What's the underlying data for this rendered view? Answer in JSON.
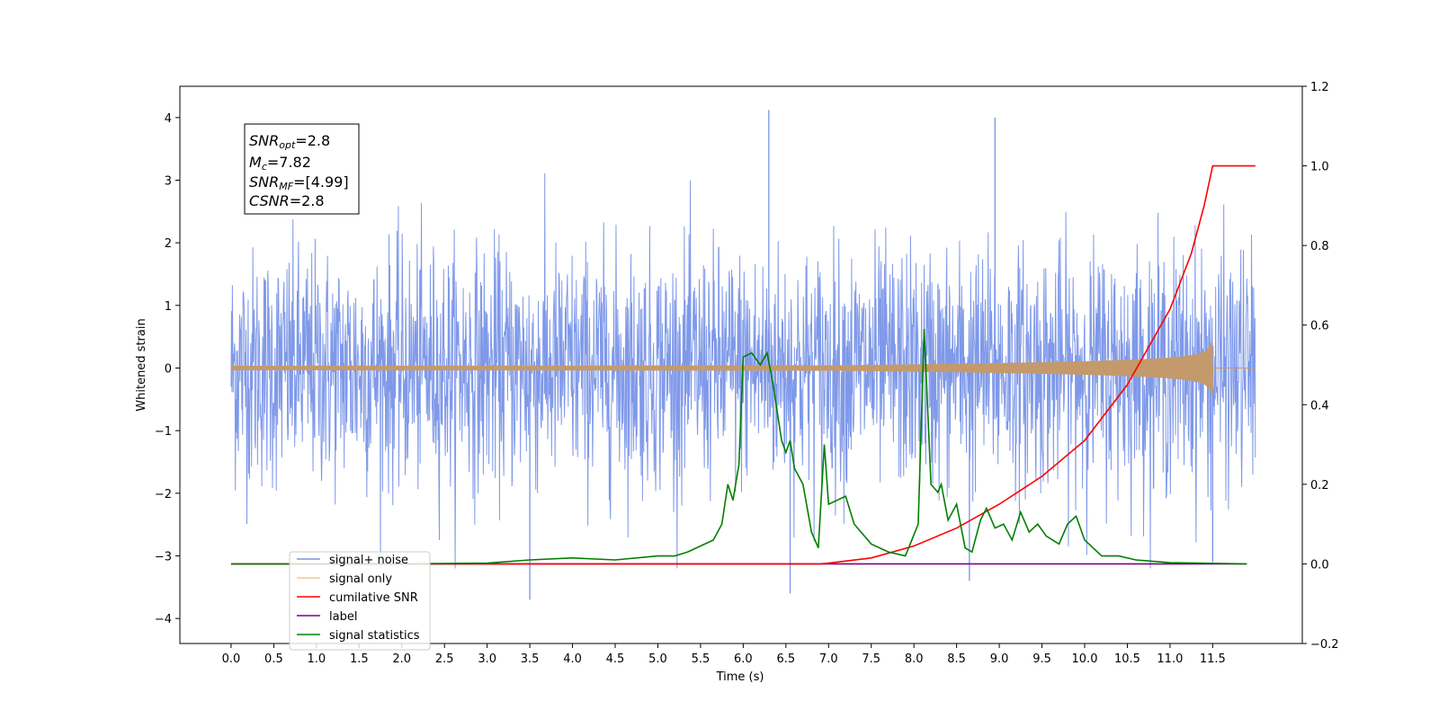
{
  "chart_data": {
    "type": "line",
    "xlabel": "Time (s)",
    "ylabel": "Whitened strain",
    "x_range": [
      -0.6,
      12.55
    ],
    "ylim_left": [
      -4.4,
      4.5
    ],
    "ylim_right": [
      -0.2,
      1.2
    ],
    "x_ticks": [
      "0.0",
      "0.5",
      "1.0",
      "1.5",
      "2.0",
      "2.5",
      "3.0",
      "3.5",
      "4.0",
      "4.5",
      "5.0",
      "5.5",
      "6.0",
      "6.5",
      "7.0",
      "7.5",
      "8.0",
      "8.5",
      "9.0",
      "9.5",
      "10.0",
      "10.5",
      "11.0",
      "11.5"
    ],
    "y_ticks_left": [
      "−4",
      "−3",
      "−2",
      "−1",
      "0",
      "1",
      "2",
      "3",
      "4"
    ],
    "y_ticks_right": [
      "−0.2",
      "0.0",
      "0.2",
      "0.4",
      "0.6",
      "0.8",
      "1.0",
      "1.2"
    ],
    "info_box": {
      "line1": "SNR",
      "line1_sub": "opt",
      "line1_val": "=2.8",
      "line2": "M",
      "line2_sub": "c",
      "line2_val": "=7.82",
      "line3": "SNR",
      "line3_sub": "MF",
      "line3_val": "=[4.99]",
      "line4": "CSNR",
      "line4_val": "=2.8"
    },
    "legend": {
      "location": "lower-left",
      "entries": [
        {
          "label": "signal+ noise",
          "color": "#7893e8"
        },
        {
          "label": "signal only",
          "color": "#f5c77e"
        },
        {
          "label": "cumilative SNR",
          "color": "#ff0000"
        },
        {
          "label": "label",
          "color": "#800080"
        },
        {
          "label": "signal statistics",
          "color": "#008000"
        }
      ]
    },
    "series": [
      {
        "name": "signal+ noise",
        "axis": "left",
        "color": "#7893e8",
        "x_start": 0.0,
        "x_end": 12.0,
        "noise_envelope": [
          -2.6,
          2.6
        ],
        "notable_peaks": [
          [
            6.3,
            4.12
          ],
          [
            8.95,
            4.0
          ],
          [
            11.5,
            -3.1
          ],
          [
            3.5,
            -3.7
          ],
          [
            6.55,
            -3.6
          ],
          [
            8.65,
            -3.4
          ]
        ]
      },
      {
        "name": "signal only",
        "axis": "left",
        "color": "#c49a6c",
        "x_start": 0.0,
        "x_end": 11.5,
        "amplitude_at_end": 0.4,
        "ringdown": [
          11.5,
          12.0
        ]
      },
      {
        "name": "cumilative SNR",
        "axis": "right",
        "color": "#ff0000",
        "points": [
          [
            0.0,
            0.0
          ],
          [
            6.9,
            0.0
          ],
          [
            7.0,
            0.002
          ],
          [
            7.5,
            0.015
          ],
          [
            8.0,
            0.045
          ],
          [
            8.5,
            0.09
          ],
          [
            9.0,
            0.15
          ],
          [
            9.5,
            0.22
          ],
          [
            10.0,
            0.31
          ],
          [
            10.5,
            0.45
          ],
          [
            11.0,
            0.64
          ],
          [
            11.25,
            0.78
          ],
          [
            11.4,
            0.9
          ],
          [
            11.47,
            0.97
          ],
          [
            11.5,
            1.0
          ],
          [
            12.0,
            1.0
          ]
        ]
      },
      {
        "name": "label",
        "axis": "right",
        "color": "#800080",
        "points": [
          [
            0.0,
            0.0
          ],
          [
            11.9,
            0.0
          ]
        ]
      },
      {
        "name": "signal statistics",
        "axis": "right",
        "color": "#008000",
        "points": [
          [
            0.0,
            0.0
          ],
          [
            2.0,
            0.0
          ],
          [
            3.0,
            0.002
          ],
          [
            3.5,
            0.01
          ],
          [
            4.0,
            0.015
          ],
          [
            4.5,
            0.01
          ],
          [
            5.0,
            0.02
          ],
          [
            5.2,
            0.02
          ],
          [
            5.35,
            0.03
          ],
          [
            5.5,
            0.045
          ],
          [
            5.65,
            0.06
          ],
          [
            5.75,
            0.1
          ],
          [
            5.82,
            0.2
          ],
          [
            5.88,
            0.16
          ],
          [
            5.95,
            0.25
          ],
          [
            6.0,
            0.52
          ],
          [
            6.1,
            0.53
          ],
          [
            6.2,
            0.5
          ],
          [
            6.28,
            0.53
          ],
          [
            6.35,
            0.45
          ],
          [
            6.45,
            0.31
          ],
          [
            6.5,
            0.28
          ],
          [
            6.55,
            0.31
          ],
          [
            6.6,
            0.24
          ],
          [
            6.7,
            0.2
          ],
          [
            6.8,
            0.08
          ],
          [
            6.88,
            0.04
          ],
          [
            6.95,
            0.3
          ],
          [
            7.0,
            0.15
          ],
          [
            7.1,
            0.16
          ],
          [
            7.2,
            0.17
          ],
          [
            7.3,
            0.1
          ],
          [
            7.5,
            0.05
          ],
          [
            7.7,
            0.03
          ],
          [
            7.9,
            0.02
          ],
          [
            8.05,
            0.1
          ],
          [
            8.12,
            0.59
          ],
          [
            8.2,
            0.2
          ],
          [
            8.28,
            0.18
          ],
          [
            8.32,
            0.2
          ],
          [
            8.4,
            0.11
          ],
          [
            8.5,
            0.15
          ],
          [
            8.6,
            0.04
          ],
          [
            8.68,
            0.03
          ],
          [
            8.78,
            0.11
          ],
          [
            8.85,
            0.14
          ],
          [
            8.95,
            0.09
          ],
          [
            9.05,
            0.1
          ],
          [
            9.15,
            0.06
          ],
          [
            9.25,
            0.13
          ],
          [
            9.35,
            0.08
          ],
          [
            9.45,
            0.1
          ],
          [
            9.55,
            0.07
          ],
          [
            9.7,
            0.05
          ],
          [
            9.8,
            0.1
          ],
          [
            9.9,
            0.12
          ],
          [
            10.0,
            0.06
          ],
          [
            10.2,
            0.02
          ],
          [
            10.4,
            0.02
          ],
          [
            10.6,
            0.01
          ],
          [
            11.0,
            0.003
          ],
          [
            11.9,
            0.0
          ]
        ]
      }
    ]
  }
}
